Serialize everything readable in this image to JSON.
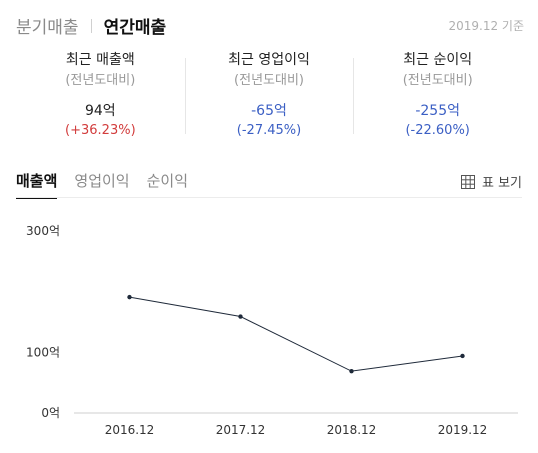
{
  "top_tabs": [
    "분기매출",
    "연간매출"
  ],
  "basis_label": "2019.12 기준",
  "metrics": [
    {
      "title": "최근 매출액",
      "sub": "(전년도대비)",
      "value": "94억",
      "change": "(+36.23%)",
      "value_color": "#222222",
      "change_color": "#d23c3c"
    },
    {
      "title": "최근 영업이익",
      "sub": "(전년도대비)",
      "value": "-65억",
      "change": "(-27.45%)",
      "value_color": "#3b5fc4",
      "change_color": "#3b5fc4"
    },
    {
      "title": "최근 순이익",
      "sub": "(전년도대비)",
      "value": "-255억",
      "change": "(-22.60%)",
      "value_color": "#3b5fc4",
      "change_color": "#3b5fc4"
    }
  ],
  "sub_tabs": [
    "매출액",
    "영업이익",
    "순이익"
  ],
  "table_view_label": "표 보기",
  "table_icon": "table-grid-icon",
  "chart_data": {
    "type": "line",
    "categories": [
      "2016.12",
      "2017.12",
      "2018.12",
      "2019.12"
    ],
    "series": [
      {
        "values": [
          191,
          159,
          69,
          94
        ]
      }
    ],
    "y_ticks": [
      {
        "value": 0,
        "label": "0억"
      },
      {
        "value": 100,
        "label": "100억"
      },
      {
        "value": 300,
        "label": "300억"
      }
    ],
    "ylim": [
      0,
      300
    ],
    "line_color": "#1f2a3a",
    "grid": false
  }
}
